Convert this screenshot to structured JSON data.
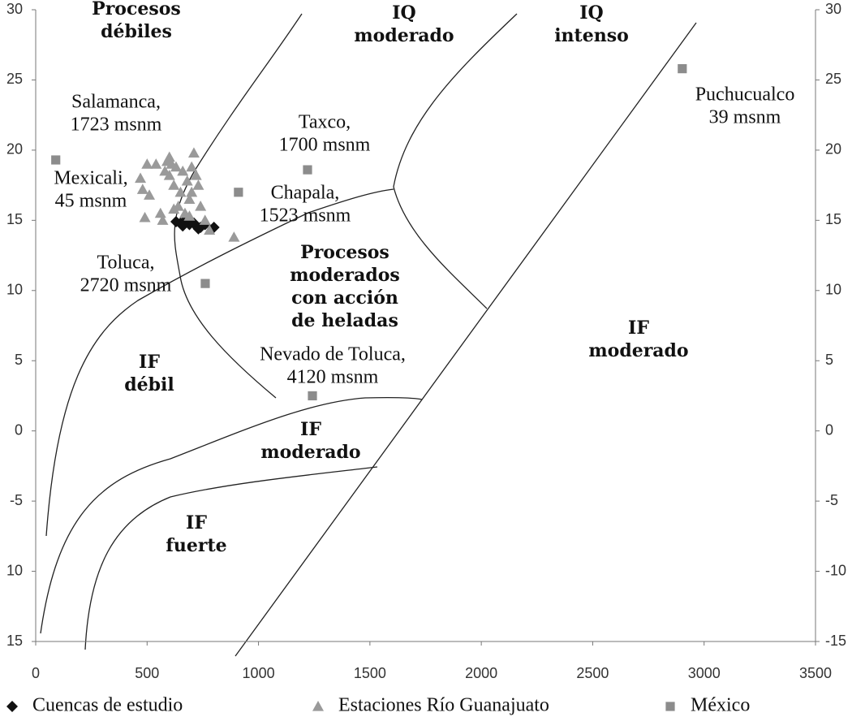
{
  "chart_data": {
    "type": "scatter",
    "xlim": [
      0,
      3500
    ],
    "xticks": [
      0,
      500,
      1000,
      1500,
      2000,
      2500,
      3000,
      3500
    ],
    "ylim": [
      -15,
      30
    ],
    "yticks": [
      30,
      25,
      20,
      15,
      10,
      5,
      0,
      -5,
      {
        "value": -10,
        "label": "10"
      },
      {
        "value": -15,
        "label": "15"
      }
    ],
    "y2lim": [
      -15,
      30
    ],
    "y2ticks": [
      30,
      25,
      20,
      15,
      10,
      5,
      0,
      -5,
      -10,
      -15
    ],
    "legend": "bottom",
    "series": [
      {
        "name": "Cuencas de estudio",
        "color": "#111111",
        "marker": "diamond",
        "x": [
          630,
          650,
          670,
          690,
          700,
          720,
          740,
          760,
          800,
          660,
          710,
          730
        ],
        "values": [
          14.9,
          14.8,
          15,
          14.7,
          14.9,
          14.6,
          14.5,
          14.7,
          14.5,
          14.6,
          14.8,
          14.4
        ]
      },
      {
        "name": "Estaciones Río Guanajuato",
        "color": "#9a9a9a",
        "marker": "triangle",
        "x": [
          470,
          480,
          490,
          500,
          510,
          540,
          560,
          570,
          580,
          590,
          600,
          600,
          610,
          620,
          630,
          640,
          650,
          660,
          670,
          680,
          690,
          700,
          700,
          710,
          720,
          730,
          740,
          760,
          780,
          890,
          620,
          690
        ],
        "values": [
          18,
          17.2,
          15.2,
          19,
          16.8,
          19,
          15.5,
          15,
          18.5,
          19.2,
          19.5,
          18.2,
          19,
          17.5,
          18.8,
          16,
          17,
          18.5,
          15.5,
          17.8,
          16.5,
          18.8,
          17,
          19.8,
          18.2,
          17.5,
          16,
          15,
          14.3,
          13.8,
          15.8,
          15.3
        ]
      },
      {
        "name": "México",
        "color": "#8c8c8c",
        "marker": "square",
        "x": [
          90,
          1220,
          910,
          761,
          1242,
          2902
        ],
        "values": [
          19.3,
          18.6,
          17,
          10.5,
          2.5,
          25.8
        ]
      }
    ],
    "region_labels": [
      [
        "Procesos",
        "débiles"
      ],
      [
        "IQ",
        "moderado"
      ],
      [
        "IQ",
        "intenso"
      ],
      [
        "Procesos",
        "moderados",
        "con acción",
        "de heladas"
      ],
      [
        "IF",
        "débil"
      ],
      [
        "IF",
        "moderado"
      ],
      [
        "IF",
        "moderado"
      ],
      [
        "IF",
        "fuerte"
      ]
    ],
    "point_labels": [
      [
        "Salamanca,",
        "1723 msnm"
      ],
      [
        "Mexicali,",
        "45 msnm"
      ],
      [
        "Taxco,",
        "1700 msnm"
      ],
      [
        "Chapala,",
        "1523 msnm"
      ],
      [
        "Toluca,",
        "2720 msnm"
      ],
      [
        "Nevado de Toluca,",
        "4120 msnm"
      ],
      [
        "Puchucualco",
        "39 msnm"
      ]
    ]
  }
}
